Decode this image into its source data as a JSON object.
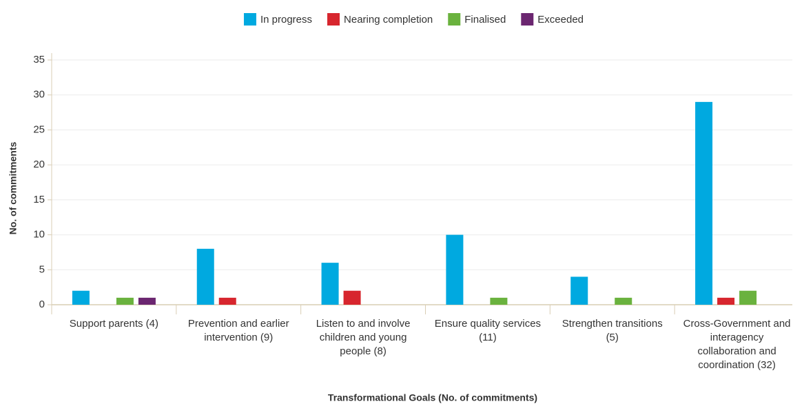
{
  "chart_data": {
    "type": "bar",
    "x_label": "Transformational Goals (No. of commitments)",
    "y_label": "No. of commitments",
    "categories": [
      "Support parents (4)",
      "Prevention and earlier intervention (9)",
      "Listen to and involve children and young people (8)",
      "Ensure quality services (11)",
      "Strengthen transitions (5)",
      "Cross-Government and interagency collaboration and coordination (32)"
    ],
    "series": [
      {
        "name": "In progress",
        "color": "#00a9e0",
        "values": [
          2,
          8,
          6,
          10,
          4,
          29
        ]
      },
      {
        "name": "Nearing completion",
        "color": "#d7262e",
        "values": [
          0,
          1,
          2,
          0,
          0,
          1
        ]
      },
      {
        "name": "Finalised",
        "color": "#6ab23e",
        "values": [
          1,
          0,
          0,
          1,
          1,
          2
        ]
      },
      {
        "name": "Exceeded",
        "color": "#6b2670",
        "values": [
          1,
          0,
          0,
          0,
          0,
          0
        ]
      }
    ],
    "ylim": [
      0,
      35
    ],
    "yticks": [
      0,
      5,
      10,
      15,
      20,
      25,
      30,
      35
    ],
    "grid": true,
    "legend": "top"
  }
}
